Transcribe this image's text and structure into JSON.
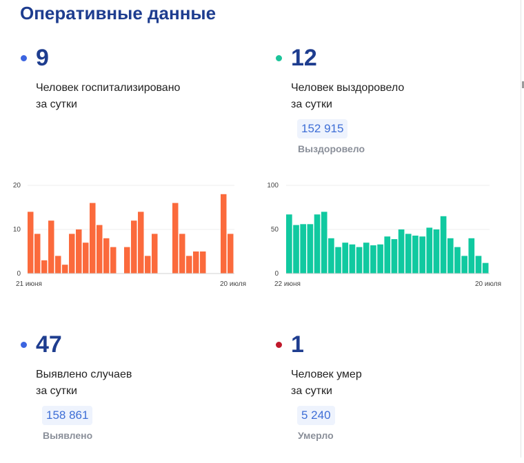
{
  "title": "Оперативные данные",
  "stats": [
    {
      "number": "9",
      "line1": "Человек госпитализировано",
      "line2": "за сутки",
      "dot_color": "#3b64e0",
      "total": null,
      "total_label": null
    },
    {
      "number": "12",
      "line1": "Человек выздоровело",
      "line2": "за сутки",
      "dot_color": "#1cc49a",
      "total": "152 915",
      "total_label": "Выздоровело"
    },
    {
      "number": "47",
      "line1": "Выявлено случаев",
      "line2": "за сутки",
      "dot_color": "#3b64e0",
      "total": "158 861",
      "total_label": "Выявлено"
    },
    {
      "number": "1",
      "line1": "Человек умер",
      "line2": "за сутки",
      "dot_color": "#c0192b",
      "total": "5 240",
      "total_label": "Умерло"
    }
  ],
  "chart_data": [
    {
      "type": "bar",
      "color": "#fb6a3c",
      "ylim": [
        0,
        20
      ],
      "y_ticks": [
        "20",
        "10",
        "0"
      ],
      "x_start_label": "21 июня",
      "x_end_label": "20 июля",
      "values": [
        14,
        9,
        3,
        12,
        4,
        2,
        9,
        10,
        7,
        16,
        11,
        8,
        6,
        null,
        6,
        12,
        14,
        4,
        9,
        null,
        null,
        16,
        9,
        4,
        5,
        5,
        null,
        null,
        18,
        9
      ],
      "title": "",
      "xlabel": "",
      "ylabel": "",
      "grid": true
    },
    {
      "type": "bar",
      "color": "#10c9a0",
      "ylim": [
        0,
        100
      ],
      "y_ticks": [
        "100",
        "50",
        "0"
      ],
      "x_start_label": "22 июня",
      "x_end_label": "20 июля",
      "values": [
        67,
        55,
        56,
        56,
        67,
        70,
        40,
        30,
        35,
        33,
        30,
        35,
        32,
        33,
        42,
        39,
        50,
        45,
        43,
        42,
        52,
        50,
        65,
        40,
        30,
        20,
        40,
        20,
        12
      ],
      "title": "",
      "xlabel": "",
      "ylabel": "",
      "grid": true
    }
  ]
}
